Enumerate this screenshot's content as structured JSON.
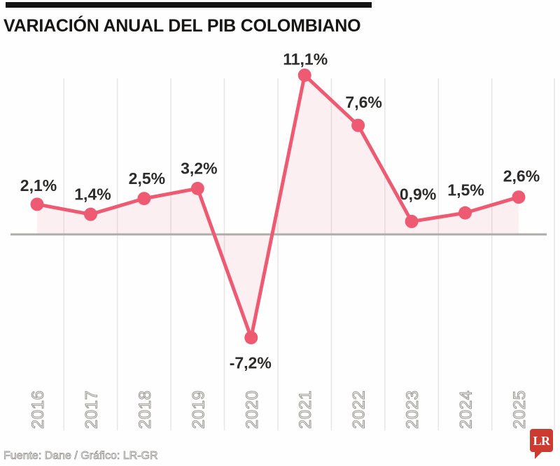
{
  "header": {
    "title": "VARIACIÓN ANUAL DEL PIB COLOMBIANO"
  },
  "chart_data": {
    "type": "line",
    "title": "VARIACIÓN ANUAL DEL PIB COLOMBIANO",
    "categories": [
      "2016",
      "2017",
      "2018",
      "2019",
      "2020",
      "2021",
      "2022",
      "2023",
      "2024",
      "2025"
    ],
    "values": [
      2.1,
      1.4,
      2.5,
      3.2,
      -7.2,
      11.1,
      7.6,
      0.9,
      1.5,
      2.6
    ],
    "point_labels": [
      "2,1%",
      "1,4%",
      "2,5%",
      "3,2%",
      "-7,2%",
      "11,1%",
      "7,6%",
      "0,9%",
      "1,5%",
      "2,6%"
    ],
    "xlabel": "",
    "ylabel": "",
    "ylim": [
      -9.5,
      13
    ],
    "baseline": 0,
    "grid": "vertical-between-categories",
    "legend": "none",
    "markers": "filled-circle",
    "area_under_line": true
  },
  "style": {
    "line_color": "#ee5a72",
    "marker_color": "#ee5a72",
    "area_fill": "rgba(238,90,114,0.09)",
    "grid_color": "#e8e6e4",
    "zero_line_color": "#aeaca9",
    "data_label_color": "#2d2c2b",
    "hollow_text_stroke": "#96938e",
    "title_bar_color": "#141414",
    "logo_color": "#cd3a30"
  },
  "footer": {
    "source": "Fuente: Dane / Gráfico: LR-GR",
    "logo_text": "LR"
  }
}
